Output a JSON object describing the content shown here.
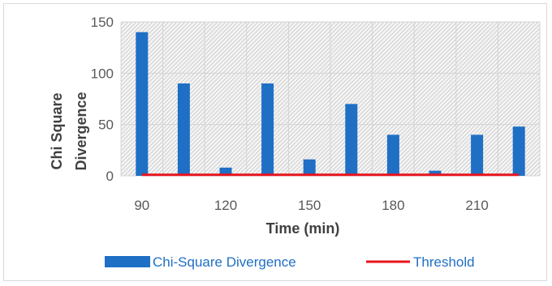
{
  "chart_data": {
    "type": "bar",
    "title": "",
    "xlabel": "Time (min)",
    "ylabel": "Chi Square Divergence",
    "ylabel_lines": [
      "Chi Square",
      "Divergence"
    ],
    "ylim": [
      0,
      150
    ],
    "yticks": [
      0,
      50,
      100,
      150
    ],
    "xticks": [
      90,
      120,
      150,
      180,
      210
    ],
    "x": [
      90,
      105,
      120,
      135,
      150,
      165,
      180,
      195,
      210,
      225
    ],
    "series": [
      {
        "name": "Chi-Square Divergence",
        "type": "bar",
        "color": "#1f6fc5",
        "values": [
          140,
          90,
          8,
          90,
          16,
          70,
          40,
          5,
          40,
          48
        ]
      },
      {
        "name": "Threshold",
        "type": "line",
        "color": "#e8141c",
        "values": [
          1,
          1,
          1,
          1,
          1,
          1,
          1,
          1,
          1,
          1
        ]
      }
    ],
    "grid": true,
    "plot_background": "hatched",
    "legend_position": "bottom"
  }
}
